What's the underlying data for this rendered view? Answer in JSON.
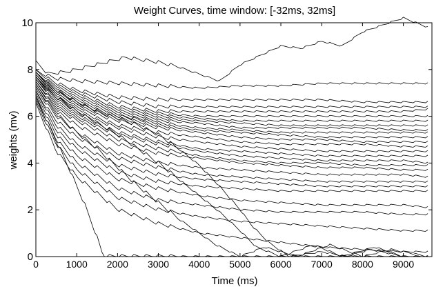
{
  "chart_data": {
    "type": "line",
    "title": "Weight Curves, time window: [-32ms, 32ms]",
    "xlabel": "Time (ms)",
    "ylabel": "weights (mv)",
    "xlim": [
      0,
      9700
    ],
    "ylim": [
      0,
      10
    ],
    "xticks": [
      0,
      1000,
      2000,
      3000,
      4000,
      5000,
      6000,
      7000,
      8000,
      9000
    ],
    "xtick_labels": [
      "0",
      "1000",
      "2000",
      "3000",
      "4000",
      "5000",
      "6000",
      "7000",
      "8000",
      "9000"
    ],
    "yticks": [
      0,
      2,
      4,
      6,
      8,
      10
    ],
    "ytick_labels": [
      "0",
      "2",
      "4",
      "6",
      "8",
      "10"
    ],
    "grid": false,
    "legend": "none",
    "line_color": "#000000",
    "sawtooth_period_ms": 300,
    "series": [
      {
        "x": [
          0,
          300,
          800,
          1500,
          2200,
          2600,
          3000,
          3500,
          4000,
          4500,
          5000,
          5500,
          6000,
          6500,
          7000,
          7500,
          8000,
          8500,
          9000,
          9600
        ],
        "values": [
          8.3,
          7.8,
          7.9,
          8.2,
          8.5,
          8.4,
          8.3,
          8.1,
          7.8,
          7.5,
          8.2,
          8.6,
          9.0,
          8.9,
          9.2,
          9.0,
          9.6,
          9.9,
          10.2,
          9.8
        ]
      },
      {
        "x": [
          0,
          500,
          1000,
          2000,
          3000,
          4000,
          5000,
          6000,
          7000,
          8000,
          9000,
          9600
        ],
        "values": [
          7.9,
          7.6,
          7.5,
          7.4,
          7.3,
          7.2,
          7.3,
          7.3,
          7.4,
          7.4,
          7.4,
          7.4
        ]
      },
      {
        "x": [
          0,
          500,
          1000,
          2000,
          3000,
          4000,
          5000,
          6000,
          7000,
          8000,
          9000,
          9600
        ],
        "values": [
          7.9,
          7.4,
          7.1,
          6.8,
          6.7,
          6.7,
          6.7,
          6.7,
          6.7,
          6.6,
          6.6,
          6.6
        ]
      },
      {
        "x": [
          0,
          500,
          1000,
          2000,
          3000,
          4000,
          5000,
          6000,
          7000,
          8000,
          9000,
          9600
        ],
        "values": [
          7.8,
          7.3,
          7.0,
          6.6,
          6.4,
          6.4,
          6.4,
          6.4,
          6.4,
          6.4,
          6.4,
          6.4
        ]
      },
      {
        "x": [
          0,
          500,
          1000,
          2000,
          3000,
          4000,
          5000,
          6000,
          7000,
          8000,
          9000,
          9600
        ],
        "values": [
          7.8,
          7.2,
          6.9,
          6.4,
          6.2,
          6.2,
          6.2,
          6.2,
          6.2,
          6.2,
          6.2,
          6.3
        ]
      },
      {
        "x": [
          0,
          500,
          1000,
          2000,
          3000,
          4000,
          5000,
          6000,
          7000,
          8000,
          9000,
          9600
        ],
        "values": [
          7.7,
          7.1,
          6.8,
          6.3,
          6.1,
          6.0,
          6.0,
          6.0,
          6.0,
          6.0,
          6.0,
          6.0
        ]
      },
      {
        "x": [
          0,
          500,
          1000,
          2000,
          3000,
          4000,
          5000,
          6000,
          7000,
          8000,
          9000,
          9600
        ],
        "values": [
          7.7,
          7.0,
          6.7,
          6.2,
          6.0,
          5.9,
          5.8,
          5.8,
          5.8,
          5.8,
          5.8,
          5.8
        ]
      },
      {
        "x": [
          0,
          500,
          1000,
          2000,
          3000,
          4000,
          5000,
          6000,
          7000,
          8000,
          9000,
          9600
        ],
        "values": [
          7.6,
          7.0,
          6.6,
          6.1,
          5.9,
          5.8,
          5.7,
          5.6,
          5.6,
          5.6,
          5.6,
          5.6
        ]
      },
      {
        "x": [
          0,
          500,
          1000,
          2000,
          3000,
          4000,
          5000,
          6000,
          7000,
          8000,
          9000,
          9600
        ],
        "values": [
          7.6,
          6.9,
          6.5,
          6.0,
          5.8,
          5.7,
          5.5,
          5.5,
          5.5,
          5.5,
          5.4,
          5.4
        ]
      },
      {
        "x": [
          0,
          500,
          1000,
          2000,
          3000,
          4000,
          5000,
          6000,
          7000,
          8000,
          9000,
          9600
        ],
        "values": [
          7.6,
          6.9,
          6.5,
          6.0,
          5.7,
          5.5,
          5.4,
          5.3,
          5.3,
          5.3,
          5.3,
          5.3
        ]
      },
      {
        "x": [
          0,
          500,
          1000,
          2000,
          3000,
          4000,
          5000,
          6000,
          7000,
          8000,
          9000,
          9600
        ],
        "values": [
          7.5,
          6.8,
          6.4,
          5.9,
          5.6,
          5.4,
          5.3,
          5.2,
          5.1,
          5.1,
          5.1,
          5.1
        ]
      },
      {
        "x": [
          0,
          500,
          1000,
          2000,
          3000,
          4000,
          5000,
          6000,
          7000,
          8000,
          9000,
          9600
        ],
        "values": [
          7.5,
          6.8,
          6.3,
          5.8,
          5.5,
          5.3,
          5.1,
          5.0,
          5.0,
          4.9,
          4.9,
          4.9
        ]
      },
      {
        "x": [
          0,
          500,
          1000,
          2000,
          3000,
          4000,
          5000,
          6000,
          7000,
          8000,
          9000,
          9600
        ],
        "values": [
          7.5,
          6.7,
          6.2,
          5.6,
          5.3,
          5.1,
          4.9,
          4.8,
          4.8,
          4.8,
          4.7,
          4.7
        ]
      },
      {
        "x": [
          0,
          500,
          1000,
          2000,
          3000,
          4000,
          5000,
          6000,
          7000,
          8000,
          9000,
          9600
        ],
        "values": [
          7.4,
          6.6,
          6.1,
          5.5,
          5.1,
          4.9,
          4.7,
          4.6,
          4.5,
          4.5,
          4.5,
          4.5
        ]
      },
      {
        "x": [
          0,
          500,
          1000,
          2000,
          3000,
          4000,
          5000,
          6000,
          7000,
          8000,
          9000,
          9600
        ],
        "values": [
          7.4,
          6.5,
          6.0,
          5.3,
          4.9,
          4.6,
          4.5,
          4.4,
          4.3,
          4.3,
          4.3,
          4.3
        ]
      },
      {
        "x": [
          0,
          500,
          1000,
          2000,
          3000,
          4000,
          5000,
          6000,
          7000,
          8000,
          9000,
          9600
        ],
        "values": [
          7.3,
          6.4,
          5.9,
          5.2,
          4.8,
          4.5,
          4.3,
          4.2,
          4.1,
          4.1,
          4.1,
          4.0
        ]
      },
      {
        "x": [
          0,
          500,
          1000,
          2000,
          3000,
          4000,
          5000,
          6000,
          7000,
          8000,
          9000,
          9600
        ],
        "values": [
          7.3,
          6.3,
          5.8,
          5.0,
          4.6,
          4.3,
          4.1,
          4.0,
          4.0,
          3.9,
          3.9,
          3.9
        ]
      },
      {
        "x": [
          0,
          500,
          1000,
          2000,
          3000,
          4000,
          5000,
          6000,
          7000,
          8000,
          9000,
          9600
        ],
        "values": [
          7.2,
          6.2,
          5.6,
          4.8,
          4.4,
          4.2,
          4.0,
          3.9,
          3.8,
          3.8,
          3.7,
          3.7
        ]
      },
      {
        "x": [
          0,
          500,
          1000,
          2000,
          3000,
          4000,
          5000,
          6000,
          7000,
          8000,
          9000,
          9600
        ],
        "values": [
          7.1,
          6.0,
          5.3,
          4.4,
          4.0,
          3.8,
          3.7,
          3.6,
          3.5,
          3.5,
          3.5,
          3.4
        ]
      },
      {
        "x": [
          0,
          500,
          1000,
          2000,
          3000,
          4000,
          5000,
          6000,
          7000,
          8000,
          9000,
          9600
        ],
        "values": [
          7.0,
          5.8,
          5.1,
          4.2,
          3.8,
          3.5,
          3.4,
          3.3,
          3.2,
          3.2,
          3.2,
          3.2
        ]
      },
      {
        "x": [
          0,
          500,
          1000,
          2000,
          3000,
          4000,
          5000,
          6000,
          7000,
          8000,
          9000,
          9600
        ],
        "values": [
          7.0,
          5.6,
          4.8,
          3.9,
          3.5,
          3.3,
          3.2,
          3.1,
          3.0,
          3.0,
          3.0,
          3.0
        ]
      },
      {
        "x": [
          0,
          500,
          1000,
          2000,
          3000,
          4000,
          5000,
          6000,
          7000,
          8000,
          9000,
          9600
        ],
        "values": [
          6.9,
          5.4,
          4.6,
          3.6,
          3.2,
          3.0,
          2.9,
          2.8,
          2.8,
          2.8,
          2.8,
          2.8
        ]
      },
      {
        "x": [
          0,
          500,
          1000,
          2000,
          3000,
          4000,
          5000,
          6000,
          7000,
          8000,
          9000,
          9600
        ],
        "values": [
          6.8,
          5.2,
          4.3,
          3.3,
          2.9,
          2.6,
          2.4,
          2.3,
          2.2,
          2.2,
          2.2,
          2.1
        ]
      },
      {
        "x": [
          0,
          500,
          1000,
          2000,
          3000,
          4000,
          5000,
          6000,
          7000,
          8000,
          9000,
          9600
        ],
        "values": [
          6.7,
          5.0,
          4.0,
          2.9,
          2.4,
          2.2,
          2.0,
          1.9,
          1.9,
          1.9,
          1.8,
          1.8
        ]
      },
      {
        "x": [
          0,
          500,
          1000,
          2000,
          3000,
          4000,
          5000,
          6000,
          7000,
          8000,
          9000,
          9600
        ],
        "values": [
          6.6,
          4.8,
          3.7,
          2.5,
          2.0,
          1.7,
          1.5,
          1.4,
          1.3,
          1.2,
          1.1,
          1.1
        ]
      },
      {
        "x": [
          0,
          500,
          1000,
          2000,
          3000,
          4000,
          5000,
          6000,
          7000,
          8000,
          9000,
          9600
        ],
        "values": [
          6.5,
          4.5,
          3.4,
          2.0,
          1.4,
          1.0,
          0.8,
          0.6,
          0.4,
          0.3,
          0.2,
          0.2
        ]
      },
      {
        "x": [
          0,
          500,
          1000,
          1500,
          2000,
          2500,
          3000,
          3500,
          4000,
          4500,
          5000,
          5300,
          5700,
          6200,
          7000,
          7600,
          8200,
          9000,
          9600
        ],
        "values": [
          7.8,
          7.1,
          6.6,
          6.2,
          5.9,
          5.6,
          5.2,
          4.6,
          3.9,
          3.0,
          2.0,
          1.3,
          0.6,
          0.0,
          0.2,
          0.0,
          0.3,
          0.0,
          0.0
        ]
      },
      {
        "x": [
          0,
          500,
          1000,
          1500,
          2000,
          2500,
          3000,
          3500,
          4000,
          4500,
          5000,
          5400,
          6000,
          6800,
          7500,
          8300,
          9000,
          9600
        ],
        "values": [
          7.6,
          6.8,
          6.2,
          5.7,
          5.2,
          4.6,
          4.0,
          3.3,
          2.6,
          1.9,
          1.1,
          0.4,
          0.0,
          0.5,
          0.0,
          0.4,
          0.0,
          0.0
        ]
      },
      {
        "x": [
          0,
          500,
          1000,
          1500,
          2000,
          2500,
          3000,
          3500,
          4000,
          4400,
          5000,
          5600,
          6400,
          7200,
          8000,
          8700,
          9600
        ],
        "values": [
          7.2,
          6.1,
          5.3,
          4.6,
          3.8,
          3.0,
          2.3,
          1.6,
          1.0,
          0.5,
          0.0,
          0.4,
          0.0,
          0.5,
          0.0,
          0.3,
          0.0
        ]
      },
      {
        "x": [
          0,
          400,
          800,
          1200,
          1500,
          1650,
          2000,
          2600,
          3200,
          4000,
          4800,
          5600,
          6500,
          7400,
          8300,
          9200,
          9600
        ],
        "values": [
          6.8,
          5.3,
          3.8,
          2.2,
          0.8,
          0.0,
          0.0,
          0.0,
          0.0,
          0.0,
          0.0,
          0.0,
          0.0,
          0.0,
          0.0,
          0.0,
          0.0
        ]
      }
    ]
  }
}
